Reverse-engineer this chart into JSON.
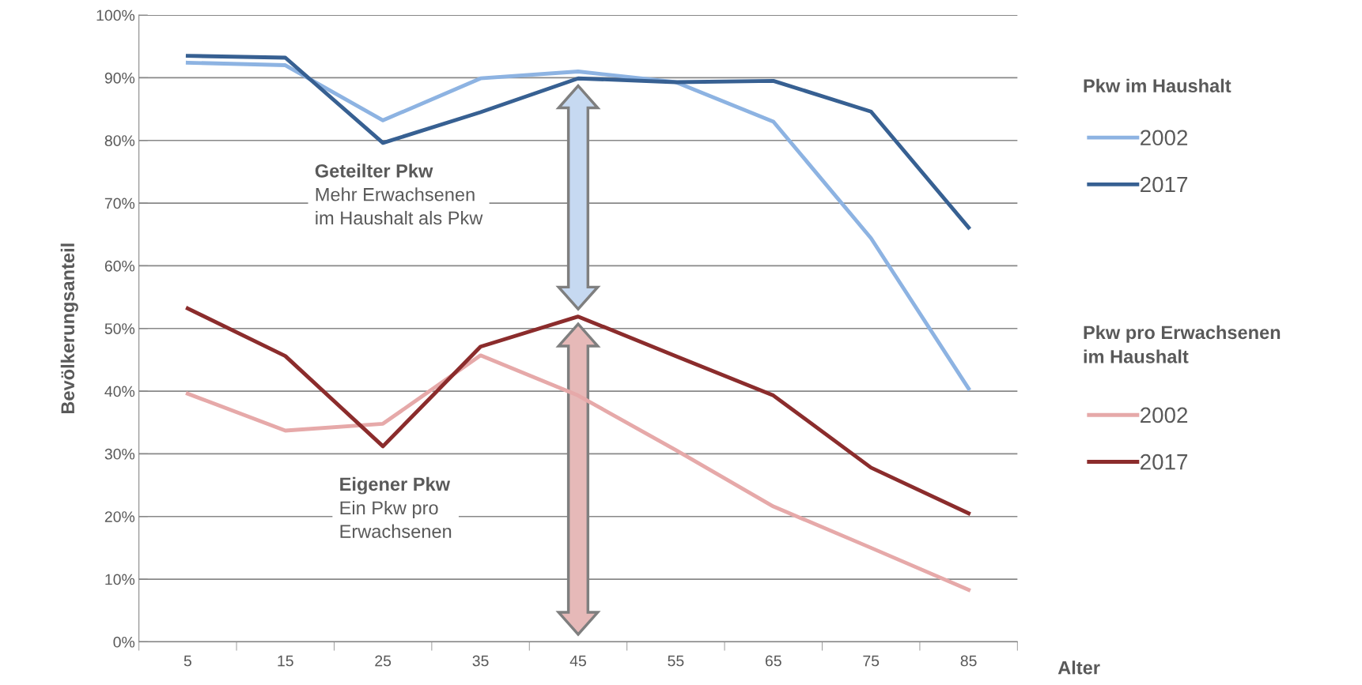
{
  "chart_data": {
    "type": "line",
    "ylabel": "Bevölkerungsanteil",
    "xlabel": "Alter",
    "categories": [
      "5",
      "15",
      "25",
      "35",
      "45",
      "55",
      "65",
      "75",
      "85"
    ],
    "ylim": [
      0,
      100
    ],
    "yticks": [
      {
        "value": 0,
        "label": "0%"
      },
      {
        "value": 10,
        "label": "10%"
      },
      {
        "value": 20,
        "label": "20%"
      },
      {
        "value": 30,
        "label": "30%"
      },
      {
        "value": 40,
        "label": "40%"
      },
      {
        "value": 50,
        "label": "50%"
      },
      {
        "value": 60,
        "label": "60%"
      },
      {
        "value": 70,
        "label": "70%"
      },
      {
        "value": 80,
        "label": "80%"
      },
      {
        "value": 90,
        "label": "90%"
      },
      {
        "value": 100,
        "label": "100%"
      }
    ],
    "series": [
      {
        "name": "2002",
        "color": "#8db3e2",
        "values": [
          92.4,
          92.0,
          83.2,
          89.9,
          91.0,
          89.3,
          83.0,
          64.4,
          40.4
        ]
      },
      {
        "name": "2017",
        "color": "#376092",
        "values": [
          93.5,
          93.2,
          79.6,
          84.5,
          89.9,
          89.3,
          89.5,
          84.6,
          66.1
        ]
      },
      {
        "name": "2002",
        "color": "#e6a9a9",
        "values": [
          39.6,
          33.7,
          34.8,
          45.7,
          39.3,
          30.6,
          21.6,
          15.0,
          8.3
        ]
      },
      {
        "name": "2017",
        "color": "#8b2c2c",
        "values": [
          53.2,
          45.6,
          31.2,
          47.1,
          51.9,
          45.6,
          39.3,
          27.8,
          20.5
        ]
      }
    ],
    "annotations": [
      "Geteilter Pkw",
      "Mehr Erwachsenen\nim Haushalt als Pkw",
      "Eigener Pkw",
      "Ein Pkw pro\nErwachsenen",
      "Pkw im Haushalt",
      "Pkw pro Erwachsenen\nim Haushalt"
    ],
    "grid": "y",
    "legend": "right",
    "marker": "none",
    "line_style": "solid"
  }
}
